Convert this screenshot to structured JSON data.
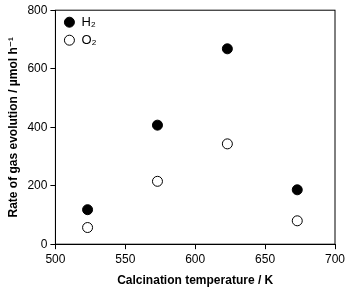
{
  "chart_data": {
    "type": "scatter",
    "x_label": "Calcination temperature / K",
    "y_label": "Rate of gas evolution / µmol h⁻¹",
    "xlim": [
      500,
      700
    ],
    "xticks": [
      500,
      550,
      600,
      650,
      700
    ],
    "ylim": [
      0,
      800
    ],
    "yticks": [
      0,
      200,
      400,
      600,
      800
    ],
    "grid": false,
    "legend": "upper left",
    "series": [
      {
        "name": "H₂",
        "color": "#000000",
        "marker": "filled_circle",
        "x": [
          523,
          573,
          623,
          673
        ],
        "values": [
          118,
          407,
          668,
          186
        ]
      },
      {
        "name": "O₂",
        "color": "#000000",
        "marker": "open_circle",
        "x": [
          523,
          573,
          623,
          673
        ],
        "values": [
          57,
          215,
          343,
          80
        ]
      }
    ]
  }
}
